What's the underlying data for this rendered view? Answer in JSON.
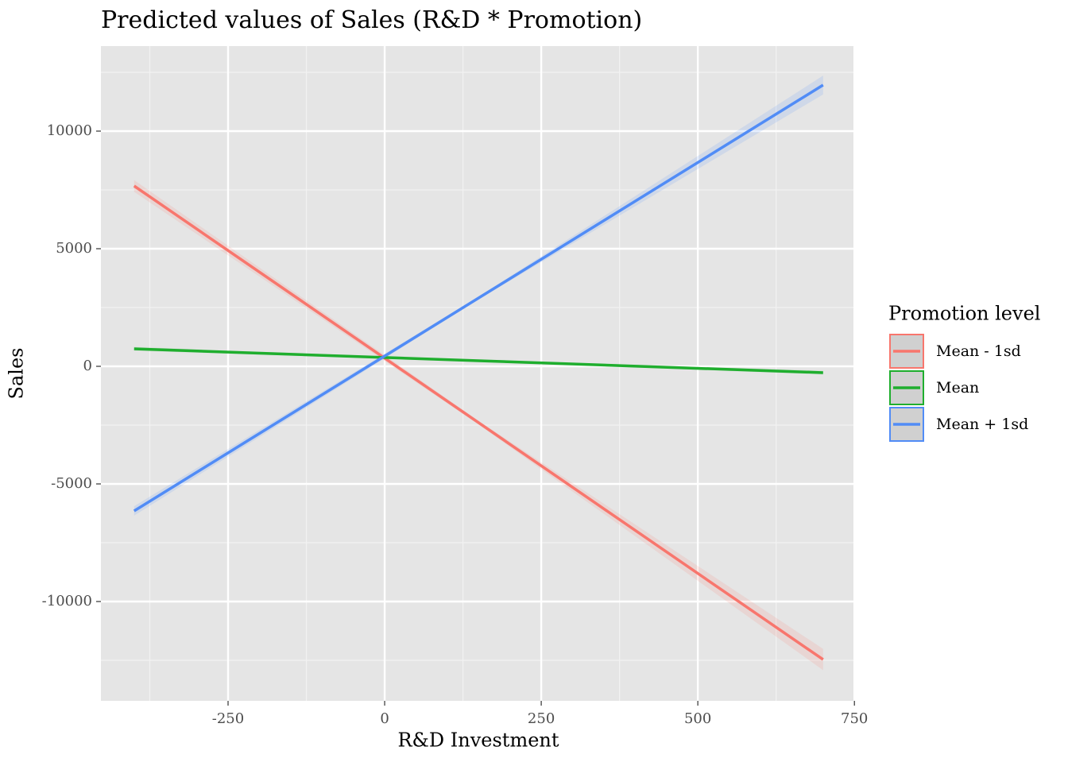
{
  "chart_data": {
    "type": "line",
    "title": "Predicted values of Sales (R&D * Promotion)",
    "x_label": "R&D Investment",
    "y_label": "Sales",
    "legend_title": "Promotion level",
    "legend_position": "right",
    "x": [
      -400,
      150,
      700
    ],
    "series": [
      {
        "name": "Mean - 1sd",
        "color": "#f8766d",
        "values": [
          7669,
          -2397,
          -12466
        ],
        "ci_lower": [
          7419,
          -2477,
          -12916
        ],
        "ci_upper": [
          7919,
          -2317,
          -12016
        ]
      },
      {
        "name": "Mean",
        "color": "#1fae2e",
        "values": [
          743,
          237,
          -270
        ],
        "ci_lower": [
          663,
          207,
          -350
        ],
        "ci_upper": [
          823,
          267,
          -190
        ]
      },
      {
        "name": "Mean + 1sd",
        "color": "#518cf6",
        "values": [
          -6149,
          2905,
          11959
        ],
        "ci_lower": [
          -6349,
          2845,
          11559
        ],
        "ci_upper": [
          -5949,
          2965,
          12359
        ]
      }
    ],
    "xlim": [
      -453,
      751
    ],
    "xticks": [
      -250,
      0,
      250,
      500,
      750
    ],
    "ylim": [
      -14223,
      13615
    ],
    "yticks": [
      -10000,
      -5000,
      0,
      5000,
      10000
    ],
    "grid": true
  }
}
